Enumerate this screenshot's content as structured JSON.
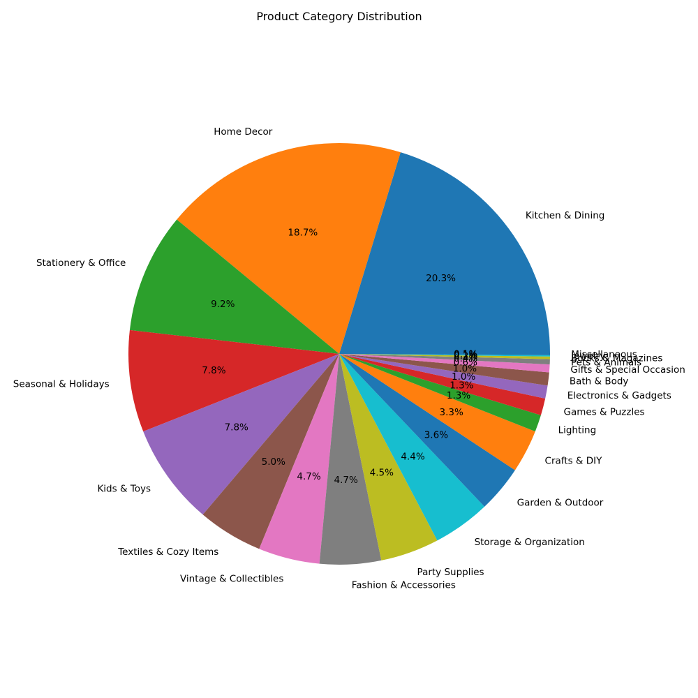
{
  "chart_data": {
    "type": "pie",
    "title": "Product Category Distribution",
    "start_angle_deg": 0,
    "direction": "counterclockwise",
    "slices": [
      {
        "label": "Kitchen & Dining",
        "value": 20.3,
        "pct_label": "20.3%",
        "color": "#1f77b4"
      },
      {
        "label": "Home Decor",
        "value": 18.7,
        "pct_label": "18.7%",
        "color": "#ff7f0e"
      },
      {
        "label": "Stationery & Office",
        "value": 9.2,
        "pct_label": "9.2%",
        "color": "#2ca02c"
      },
      {
        "label": "Seasonal & Holidays",
        "value": 7.8,
        "pct_label": "7.8%",
        "color": "#d62728"
      },
      {
        "label": "Kids & Toys",
        "value": 7.8,
        "pct_label": "7.8%",
        "color": "#9467bd"
      },
      {
        "label": "Textiles & Cozy Items",
        "value": 5.0,
        "pct_label": "5.0%",
        "color": "#8c564b"
      },
      {
        "label": "Vintage & Collectibles",
        "value": 4.7,
        "pct_label": "4.7%",
        "color": "#e377c2"
      },
      {
        "label": "Fashion & Accessories",
        "value": 4.7,
        "pct_label": "4.7%",
        "color": "#7f7f7f"
      },
      {
        "label": "Party Supplies",
        "value": 4.5,
        "pct_label": "4.5%",
        "color": "#bcbd22"
      },
      {
        "label": "Storage & Organization",
        "value": 4.4,
        "pct_label": "4.4%",
        "color": "#17becf"
      },
      {
        "label": "Garden & Outdoor",
        "value": 3.6,
        "pct_label": "3.6%",
        "color": "#1f77b4"
      },
      {
        "label": "Crafts & DIY",
        "value": 3.3,
        "pct_label": "3.3%",
        "color": "#ff7f0e"
      },
      {
        "label": "Lighting",
        "value": 1.3,
        "pct_label": "1.3%",
        "color": "#2ca02c"
      },
      {
        "label": "Games & Puzzles",
        "value": 1.3,
        "pct_label": "1.3%",
        "color": "#d62728"
      },
      {
        "label": "Electronics & Gadgets",
        "value": 1.0,
        "pct_label": "1.0%",
        "color": "#9467bd"
      },
      {
        "label": "Bath & Body",
        "value": 1.0,
        "pct_label": "1.0%",
        "color": "#8c564b"
      },
      {
        "label": "Gifts & Special Occasion",
        "value": 0.6,
        "pct_label": "0.6%",
        "color": "#e377c2"
      },
      {
        "label": "Pets & Animals",
        "value": 0.4,
        "pct_label": "0.4%",
        "color": "#7f7f7f"
      },
      {
        "label": "Books & Magazines",
        "value": 0.2,
        "pct_label": "0.2%",
        "color": "#bcbd22"
      },
      {
        "label": "Jewelry",
        "value": 0.1,
        "pct_label": "0.1%",
        "color": "#17becf"
      },
      {
        "label": "Miscellaneous",
        "value": 0.1,
        "pct_label": "0.1%",
        "color": "#1f77b4"
      }
    ]
  }
}
